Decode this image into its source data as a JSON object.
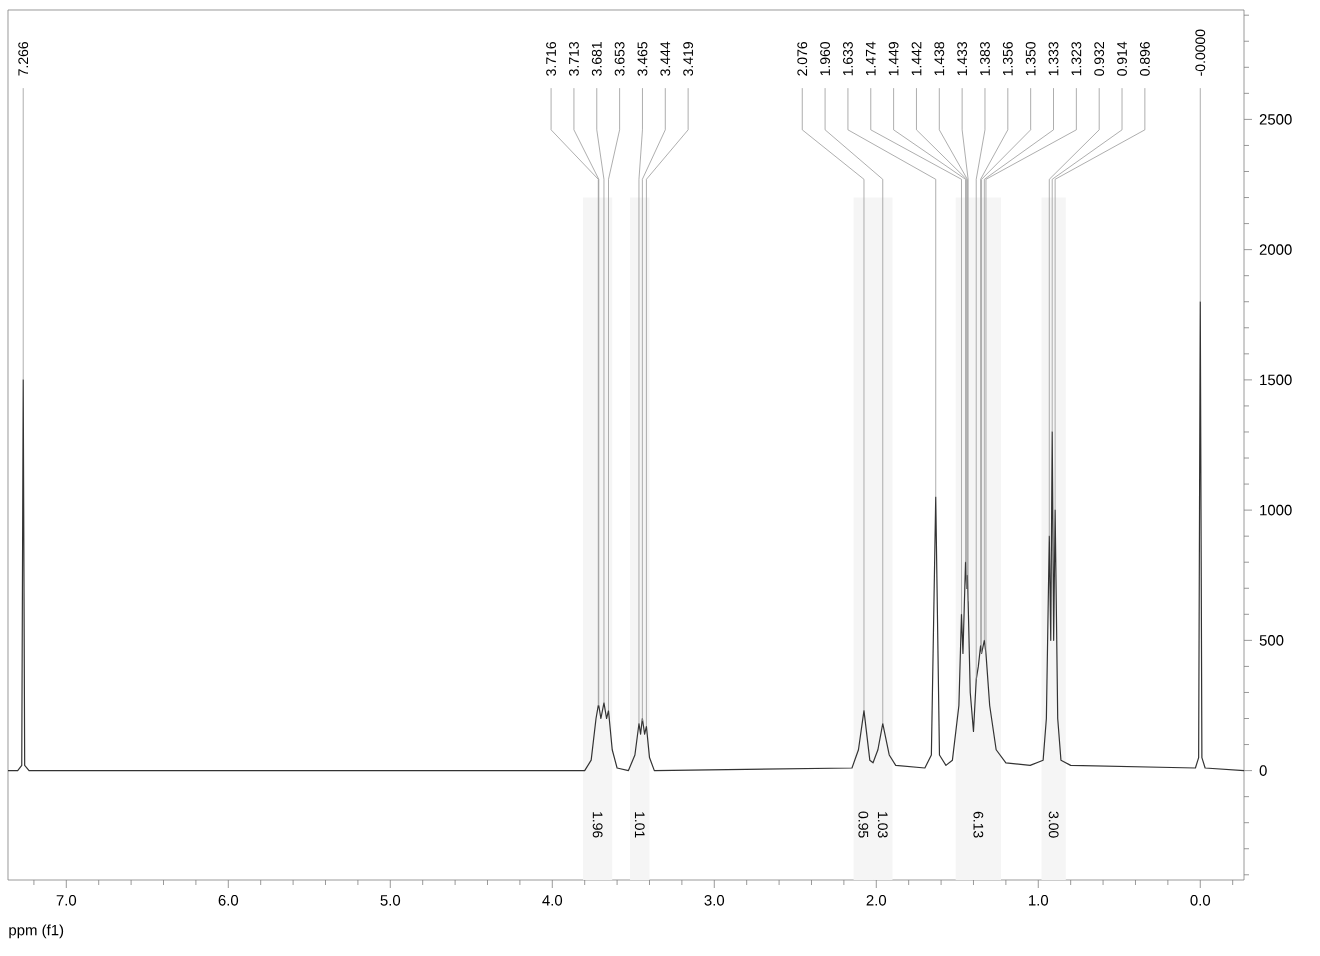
{
  "chart_data": {
    "type": "line",
    "xlabel": "ppm (f1)",
    "xlim": [
      7.36,
      -0.27
    ],
    "ylim": [
      -420,
      2920
    ],
    "xticks": [
      {
        "value": 7.2,
        "label": null
      },
      {
        "value": 7,
        "label": "7.0"
      },
      {
        "value": 6.8,
        "label": null
      },
      {
        "value": 6.6,
        "label": null
      },
      {
        "value": 6.4,
        "label": null
      },
      {
        "value": 6.2,
        "label": null
      },
      {
        "value": 6,
        "label": "6.0"
      },
      {
        "value": 5.8,
        "label": null
      },
      {
        "value": 5.6,
        "label": null
      },
      {
        "value": 5.4,
        "label": null
      },
      {
        "value": 5.2,
        "label": null
      },
      {
        "value": 5,
        "label": "5.0"
      },
      {
        "value": 4.8,
        "label": null
      },
      {
        "value": 4.6,
        "label": null
      },
      {
        "value": 4.4,
        "label": null
      },
      {
        "value": 4.2,
        "label": null
      },
      {
        "value": 4,
        "label": "4.0"
      },
      {
        "value": 3.8,
        "label": null
      },
      {
        "value": 3.6,
        "label": null
      },
      {
        "value": 3.4,
        "label": null
      },
      {
        "value": 3.2,
        "label": null
      },
      {
        "value": 3,
        "label": "3.0"
      },
      {
        "value": 2.8,
        "label": null
      },
      {
        "value": 2.6,
        "label": null
      },
      {
        "value": 2.4,
        "label": null
      },
      {
        "value": 2.2,
        "label": null
      },
      {
        "value": 2,
        "label": "2.0"
      },
      {
        "value": 1.8,
        "label": null
      },
      {
        "value": 1.6,
        "label": null
      },
      {
        "value": 1.4,
        "label": null
      },
      {
        "value": 1.2,
        "label": null
      },
      {
        "value": 1,
        "label": "1.0"
      },
      {
        "value": 0.8,
        "label": null
      },
      {
        "value": 0.6,
        "label": null
      },
      {
        "value": 0.4,
        "label": null
      },
      {
        "value": 0.2,
        "label": null
      },
      {
        "value": 0,
        "label": "0.0"
      },
      {
        "value": -0.2,
        "label": null
      }
    ],
    "yticks": [
      {
        "value": -400,
        "label": null
      },
      {
        "value": -300,
        "label": null
      },
      {
        "value": -200,
        "label": null
      },
      {
        "value": -100,
        "label": null
      },
      0,
      {
        "value": 100,
        "label": null
      },
      {
        "value": 200,
        "label": null
      },
      {
        "value": 300,
        "label": null
      },
      {
        "value": 400,
        "label": null
      },
      500,
      {
        "value": 600,
        "label": null
      },
      {
        "value": 700,
        "label": null
      },
      {
        "value": 800,
        "label": null
      },
      {
        "value": 900,
        "label": null
      },
      1000,
      {
        "value": 1100,
        "label": null
      },
      {
        "value": 1200,
        "label": null
      },
      {
        "value": 1300,
        "label": null
      },
      {
        "value": 1400,
        "label": null
      },
      1500,
      {
        "value": 1600,
        "label": null
      },
      {
        "value": 1700,
        "label": null
      },
      {
        "value": 1800,
        "label": null
      },
      {
        "value": 1900,
        "label": null
      },
      2000,
      {
        "value": 2100,
        "label": null
      },
      {
        "value": 2200,
        "label": null
      },
      {
        "value": 2300,
        "label": null
      },
      {
        "value": 2400,
        "label": null
      },
      2500,
      {
        "value": 2600,
        "label": null
      },
      {
        "value": 2700,
        "label": null
      },
      {
        "value": 2800,
        "label": null
      },
      {
        "value": 2900,
        "label": null
      }
    ],
    "series": [
      {
        "color": "#333333",
        "x": [
          7.36,
          7.3,
          7.275,
          7.266,
          7.257,
          7.23,
          3.8,
          3.76,
          3.73,
          3.716,
          3.713,
          3.7,
          3.681,
          3.665,
          3.653,
          3.63,
          3.6,
          3.53,
          3.49,
          3.465,
          3.455,
          3.444,
          3.43,
          3.419,
          3.4,
          3.37,
          2.15,
          2.11,
          2.076,
          2.04,
          2.02,
          1.99,
          1.96,
          1.92,
          1.88,
          1.7,
          1.66,
          1.633,
          1.61,
          1.57,
          1.53,
          1.49,
          1.474,
          1.465,
          1.449,
          1.442,
          1.438,
          1.433,
          1.42,
          1.4,
          1.383,
          1.37,
          1.356,
          1.35,
          1.333,
          1.323,
          1.3,
          1.26,
          1.2,
          1.05,
          0.97,
          0.95,
          0.932,
          0.923,
          0.914,
          0.905,
          0.896,
          0.88,
          0.86,
          0.8,
          0.03,
          0.01,
          0,
          -0.01,
          -0.03,
          -0.27
        ],
        "values": [
          0,
          0,
          20,
          1500,
          20,
          0,
          0,
          40,
          200,
          250,
          250,
          200,
          260,
          200,
          230,
          80,
          10,
          0,
          60,
          180,
          140,
          200,
          140,
          170,
          50,
          0,
          10,
          80,
          230,
          40,
          30,
          80,
          180,
          60,
          20,
          10,
          60,
          1050,
          60,
          20,
          40,
          250,
          600,
          450,
          800,
          700,
          750,
          650,
          300,
          150,
          350,
          400,
          480,
          450,
          500,
          450,
          250,
          80,
          30,
          20,
          40,
          200,
          900,
          500,
          1300,
          500,
          1000,
          200,
          40,
          20,
          10,
          50,
          1800,
          50,
          10,
          0
        ]
      }
    ],
    "bands": [
      {
        "axis": "x",
        "from": 3.81,
        "to": 3.63,
        "label": "1.96"
      },
      {
        "axis": "x",
        "from": 3.52,
        "to": 3.4,
        "label": "1.01"
      },
      {
        "axis": "x",
        "from": 2.14,
        "to": 2.02,
        "label": "0.95"
      },
      {
        "axis": "x",
        "from": 2.02,
        "to": 1.9,
        "label": "1.03"
      },
      {
        "axis": "x",
        "from": 1.51,
        "to": 1.23,
        "label": "6.13"
      },
      {
        "axis": "x",
        "from": 0.98,
        "to": 0.83,
        "label": "3.00"
      }
    ],
    "annotations": [
      {
        "text": "7.266",
        "x": 7.266,
        "y": 1500
      },
      {
        "text": "3.716",
        "x": 3.716,
        "y": 250
      },
      {
        "text": "3.713",
        "x": 3.713,
        "y": 250
      },
      {
        "text": "3.681",
        "x": 3.681,
        "y": 260
      },
      {
        "text": "3.653",
        "x": 3.653,
        "y": 230
      },
      {
        "text": "3.465",
        "x": 3.465,
        "y": 180
      },
      {
        "text": "3.444",
        "x": 3.444,
        "y": 190
      },
      {
        "text": "3.419",
        "x": 3.419,
        "y": 170
      },
      {
        "text": "2.076",
        "x": 2.076,
        "y": 230
      },
      {
        "text": "1.960",
        "x": 1.96,
        "y": 180
      },
      {
        "text": "1.633",
        "x": 1.633,
        "y": 1050
      },
      {
        "text": "1.474",
        "x": 1.474,
        "y": 600
      },
      {
        "text": "1.449",
        "x": 1.449,
        "y": 800
      },
      {
        "text": "1.442",
        "x": 1.442,
        "y": 700
      },
      {
        "text": "1.438",
        "x": 1.438,
        "y": 750
      },
      {
        "text": "1.433",
        "x": 1.433,
        "y": 650
      },
      {
        "text": "1.383",
        "x": 1.383,
        "y": 350
      },
      {
        "text": "1.356",
        "x": 1.356,
        "y": 480
      },
      {
        "text": "1.350",
        "x": 1.35,
        "y": 450
      },
      {
        "text": "1.333",
        "x": 1.333,
        "y": 500
      },
      {
        "text": "1.323",
        "x": 1.323,
        "y": 450
      },
      {
        "text": "0.932",
        "x": 0.932,
        "y": 900
      },
      {
        "text": "0.914",
        "x": 0.914,
        "y": 1300
      },
      {
        "text": "0.896",
        "x": 0.896,
        "y": 1000
      },
      {
        "text": "-0.0000",
        "x": 0,
        "y": 1800
      }
    ]
  }
}
